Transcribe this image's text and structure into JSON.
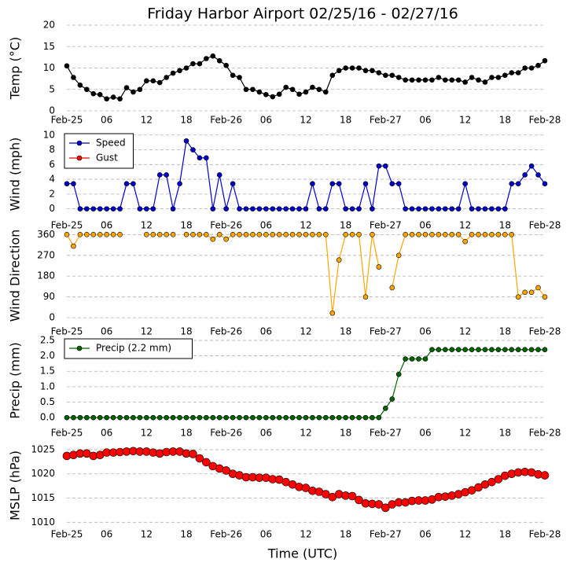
{
  "chart_data": [
    {
      "type": "line",
      "title": "Friday Harbor Airport 02/25/16 - 02/27/16",
      "ylabel": "Temp (°C)",
      "x": [
        0,
        1,
        2,
        3,
        4,
        5,
        6,
        7,
        8,
        9,
        10,
        11,
        12,
        13,
        14,
        15,
        16,
        17,
        18,
        19,
        20,
        21,
        22,
        23,
        24,
        25,
        26,
        27,
        28,
        29,
        30,
        31,
        32,
        33,
        34,
        35,
        36,
        37,
        38,
        39,
        40,
        41,
        42,
        43,
        44,
        45,
        46,
        47,
        48,
        49,
        50,
        51,
        52,
        53,
        54,
        55,
        56,
        57,
        58,
        59,
        60,
        61,
        62,
        63,
        64,
        65,
        66,
        67,
        68,
        69,
        70,
        71,
        72
      ],
      "xlim": [
        0,
        72
      ],
      "xticks": [
        {
          "value": 0,
          "label": "Feb-25"
        },
        {
          "value": 6,
          "label": "06"
        },
        12,
        18,
        {
          "value": 24,
          "label": "Feb-26"
        },
        {
          "value": 30,
          "label": "06"
        },
        {
          "value": 36,
          "label": "12"
        },
        {
          "value": 42,
          "label": "18"
        },
        {
          "value": 48,
          "label": "Feb-27"
        },
        {
          "value": 54,
          "label": "06"
        },
        {
          "value": 60,
          "label": "12"
        },
        {
          "value": 66,
          "label": "18"
        },
        {
          "value": 72,
          "label": "Feb-28"
        }
      ],
      "ylim": [
        0,
        20
      ],
      "yticks": [
        0,
        5,
        10,
        15,
        20
      ],
      "grid": true,
      "series": [
        {
          "name": null,
          "color": "#000000",
          "line": true,
          "marker_size": 3,
          "values": [
            10.5,
            7.8,
            6,
            5,
            4,
            3.8,
            2.8,
            3.2,
            2.8,
            5.4,
            4.4,
            5,
            7,
            7,
            6.6,
            7.8,
            8.8,
            9.4,
            10,
            11,
            11,
            12.2,
            12.8,
            11.7,
            10.6,
            8.3,
            7.8,
            5,
            5,
            4.4,
            3.8,
            3.3,
            3.9,
            5.5,
            5,
            3.9,
            4.4,
            5.5,
            5,
            4.4,
            8.3,
            9.4,
            10,
            10,
            10,
            9.4,
            9.4,
            8.9,
            8.3,
            8.3,
            7.8,
            7.2,
            7.2,
            7.2,
            7.2,
            7.2,
            7.8,
            7.2,
            7.2,
            7.2,
            6.7,
            7.8,
            7.2,
            6.7,
            7.8,
            7.8,
            8.3,
            8.9,
            8.9,
            10,
            10,
            10.6,
            11.7
          ]
        }
      ]
    },
    {
      "type": "line",
      "ylabel": "Wind (mph)",
      "legend": "upper left",
      "x": [
        0,
        1,
        2,
        3,
        4,
        5,
        6,
        7,
        8,
        9,
        10,
        11,
        12,
        13,
        14,
        15,
        16,
        17,
        18,
        19,
        20,
        21,
        22,
        23,
        24,
        25,
        26,
        27,
        28,
        29,
        30,
        31,
        32,
        33,
        34,
        35,
        36,
        37,
        38,
        39,
        40,
        41,
        42,
        43,
        44,
        45,
        46,
        47,
        48,
        49,
        50,
        51,
        52,
        53,
        54,
        55,
        56,
        57,
        58,
        59,
        60,
        61,
        62,
        63,
        64,
        65,
        66,
        67,
        68,
        69,
        70,
        71,
        72
      ],
      "xlim": [
        0,
        72
      ],
      "xticks": [
        {
          "value": 0,
          "label": "Feb-25"
        },
        {
          "value": 6,
          "label": "06"
        },
        12,
        18,
        {
          "value": 24,
          "label": "Feb-26"
        },
        {
          "value": 30,
          "label": "06"
        },
        {
          "value": 36,
          "label": "12"
        },
        {
          "value": 42,
          "label": "18"
        },
        {
          "value": 48,
          "label": "Feb-27"
        },
        {
          "value": 54,
          "label": "06"
        },
        {
          "value": 60,
          "label": "12"
        },
        {
          "value": 66,
          "label": "18"
        },
        {
          "value": 72,
          "label": "Feb-28"
        }
      ],
      "ylim": [
        -1,
        10.4
      ],
      "yticks": [
        0,
        2,
        4,
        6,
        8,
        10
      ],
      "grid": true,
      "series": [
        {
          "name": "Speed",
          "color": "#0000cc",
          "line": true,
          "marker_size": 3,
          "values": [
            3.4,
            3.4,
            0,
            0,
            0,
            0,
            0,
            0,
            0,
            3.4,
            3.4,
            0,
            0,
            0,
            4.6,
            4.6,
            0,
            3.4,
            9.2,
            8,
            6.9,
            6.9,
            0,
            4.6,
            0,
            3.4,
            0,
            0,
            0,
            0,
            0,
            0,
            0,
            0,
            0,
            0,
            0,
            3.4,
            0,
            0,
            3.4,
            3.4,
            0,
            0,
            0,
            3.4,
            0,
            5.8,
            5.8,
            3.4,
            3.4,
            0,
            0,
            0,
            0,
            0,
            0,
            0,
            0,
            0,
            3.4,
            0,
            0,
            0,
            0,
            0,
            0,
            3.4,
            3.4,
            4.6,
            5.8,
            4.6,
            3.4
          ]
        },
        {
          "name": "Gust",
          "color": "#ff0000",
          "line": true,
          "marker_size": 3,
          "values": [
            null,
            null,
            null,
            null,
            null,
            null,
            null,
            null,
            null,
            null,
            null,
            null,
            null,
            null,
            null,
            null,
            null,
            null,
            null,
            null,
            null,
            null,
            null,
            null,
            null,
            null,
            null,
            null,
            null,
            null,
            null,
            null,
            null,
            null,
            null,
            null,
            null,
            null,
            null,
            null,
            null,
            null,
            null,
            null,
            null,
            null,
            null,
            null,
            null,
            null,
            null,
            null,
            null,
            null,
            null,
            null,
            null,
            null,
            null,
            null,
            null,
            null,
            null,
            null,
            null,
            null,
            null,
            null,
            null,
            null,
            null,
            null,
            null
          ]
        }
      ]
    },
    {
      "type": "line",
      "ylabel": "Wind Direction",
      "x": [
        0,
        1,
        2,
        3,
        4,
        5,
        6,
        7,
        8,
        9,
        10,
        11,
        12,
        13,
        14,
        15,
        16,
        17,
        18,
        19,
        20,
        21,
        22,
        23,
        24,
        25,
        26,
        27,
        28,
        29,
        30,
        31,
        32,
        33,
        34,
        35,
        36,
        37,
        38,
        39,
        40,
        41,
        42,
        43,
        44,
        45,
        46,
        47,
        48,
        49,
        50,
        51,
        52,
        53,
        54,
        55,
        56,
        57,
        58,
        59,
        60,
        61,
        62,
        63,
        64,
        65,
        66,
        67,
        68,
        69,
        70,
        71,
        72
      ],
      "xlim": [
        0,
        72
      ],
      "xticks": [
        {
          "value": 0,
          "label": "Feb-25"
        },
        {
          "value": 6,
          "label": "06"
        },
        12,
        18,
        {
          "value": 24,
          "label": "Feb-26"
        },
        {
          "value": 30,
          "label": "06"
        },
        {
          "value": 36,
          "label": "12"
        },
        {
          "value": 42,
          "label": "18"
        },
        {
          "value": 48,
          "label": "Feb-27"
        },
        {
          "value": 54,
          "label": "06"
        },
        {
          "value": 60,
          "label": "12"
        },
        {
          "value": 66,
          "label": "18"
        },
        {
          "value": 72,
          "label": "Feb-28"
        }
      ],
      "ylim": [
        -20,
        385
      ],
      "yticks": [
        0,
        90,
        180,
        270,
        360
      ],
      "grid": true,
      "series": [
        {
          "name": null,
          "color": "#ffa500",
          "line": true,
          "marker_size": 3,
          "values": [
            360,
            310,
            360,
            360,
            360,
            360,
            360,
            360,
            360,
            null,
            null,
            null,
            360,
            360,
            360,
            360,
            360,
            null,
            360,
            360,
            360,
            360,
            340,
            360,
            340,
            360,
            360,
            360,
            360,
            360,
            360,
            360,
            360,
            360,
            360,
            360,
            360,
            360,
            360,
            360,
            20,
            250,
            360,
            360,
            360,
            90,
            360,
            220,
            null,
            130,
            270,
            360,
            360,
            360,
            360,
            360,
            360,
            360,
            360,
            360,
            330,
            360,
            360,
            360,
            360,
            360,
            360,
            360,
            90,
            110,
            110,
            130,
            90
          ]
        }
      ]
    },
    {
      "type": "line",
      "ylabel": "Precip (mm)",
      "legend": "upper left",
      "x": [
        0,
        1,
        2,
        3,
        4,
        5,
        6,
        7,
        8,
        9,
        10,
        11,
        12,
        13,
        14,
        15,
        16,
        17,
        18,
        19,
        20,
        21,
        22,
        23,
        24,
        25,
        26,
        27,
        28,
        29,
        30,
        31,
        32,
        33,
        34,
        35,
        36,
        37,
        38,
        39,
        40,
        41,
        42,
        43,
        44,
        45,
        46,
        47,
        48,
        49,
        50,
        51,
        52,
        53,
        54,
        55,
        56,
        57,
        58,
        59,
        60,
        61,
        62,
        63,
        64,
        65,
        66,
        67,
        68,
        69,
        70,
        71,
        72
      ],
      "xlim": [
        0,
        72
      ],
      "xticks": [
        {
          "value": 0,
          "label": "Feb-25"
        },
        {
          "value": 6,
          "label": "06"
        },
        12,
        18,
        {
          "value": 24,
          "label": "Feb-26"
        },
        {
          "value": 30,
          "label": "06"
        },
        {
          "value": 36,
          "label": "12"
        },
        {
          "value": 42,
          "label": "18"
        },
        {
          "value": 48,
          "label": "Feb-27"
        },
        {
          "value": 54,
          "label": "06"
        },
        {
          "value": 60,
          "label": "12"
        },
        {
          "value": 66,
          "label": "18"
        },
        {
          "value": 72,
          "label": "Feb-28"
        }
      ],
      "ylim": [
        -0.2,
        2.6
      ],
      "yticks": [
        {
          "value": 0,
          "label": "0.0"
        },
        0.5,
        {
          "value": 1,
          "label": "1.0"
        },
        1.5,
        {
          "value": 2,
          "label": "2.0"
        },
        2.5
      ],
      "grid": true,
      "series": [
        {
          "name": "Precip (2.2 mm)",
          "color": "#006400",
          "line": true,
          "marker_size": 3,
          "values": [
            0,
            0,
            0,
            0,
            0,
            0,
            0,
            0,
            0,
            0,
            0,
            0,
            0,
            0,
            0,
            0,
            0,
            0,
            0,
            0,
            0,
            0,
            0,
            0,
            0,
            0,
            0,
            0,
            0,
            0,
            0,
            0,
            0,
            0,
            0,
            0,
            0,
            0,
            0,
            0,
            0,
            0,
            0,
            0,
            0,
            0,
            0,
            0,
            0.3,
            0.6,
            1.4,
            1.9,
            1.9,
            1.9,
            1.9,
            2.2,
            2.2,
            2.2,
            2.2,
            2.2,
            2.2,
            2.2,
            2.2,
            2.2,
            2.2,
            2.2,
            2.2,
            2.2,
            2.2,
            2.2,
            2.2,
            2.2,
            2.2
          ]
        }
      ]
    },
    {
      "type": "line",
      "ylabel": "MSLP (hPa)",
      "xlabel": "Time (UTC)",
      "x": [
        0,
        1,
        2,
        3,
        4,
        5,
        6,
        7,
        8,
        9,
        10,
        11,
        12,
        13,
        14,
        15,
        16,
        17,
        18,
        19,
        20,
        21,
        22,
        23,
        24,
        25,
        26,
        27,
        28,
        29,
        30,
        31,
        32,
        33,
        34,
        35,
        36,
        37,
        38,
        39,
        40,
        41,
        42,
        43,
        44,
        45,
        46,
        47,
        48,
        49,
        50,
        51,
        52,
        53,
        54,
        55,
        56,
        57,
        58,
        59,
        60,
        61,
        62,
        63,
        64,
        65,
        66,
        67,
        68,
        69,
        70,
        71,
        72
      ],
      "xlim": [
        0,
        72
      ],
      "xticks": [
        {
          "value": 0,
          "label": "Feb-25"
        },
        {
          "value": 6,
          "label": "06"
        },
        12,
        18,
        {
          "value": 24,
          "label": "Feb-26"
        },
        {
          "value": 30,
          "label": "06"
        },
        {
          "value": 36,
          "label": "12"
        },
        {
          "value": 42,
          "label": "18"
        },
        {
          "value": 48,
          "label": "Feb-27"
        },
        {
          "value": 54,
          "label": "06"
        },
        {
          "value": 60,
          "label": "12"
        },
        {
          "value": 66,
          "label": "18"
        },
        {
          "value": 72,
          "label": "Feb-28"
        }
      ],
      "ylim": [
        1009.4,
        1025.8
      ],
      "yticks": [
        1010,
        1015,
        1020,
        1025
      ],
      "grid": true,
      "series": [
        {
          "name": null,
          "color": "#ff0000",
          "line": false,
          "marker_size": 5,
          "values": [
            1023.7,
            1023.9,
            1024.2,
            1024.2,
            1023.7,
            1023.9,
            1024.4,
            1024.4,
            1024.5,
            1024.6,
            1024.7,
            1024.6,
            1024.6,
            1024.4,
            1024.2,
            1024.5,
            1024.6,
            1024.6,
            1024.2,
            1024.1,
            1023.2,
            1022.4,
            1021.6,
            1021.1,
            1020.7,
            1020,
            1019.7,
            1019.3,
            1019.3,
            1019.2,
            1019.2,
            1018.9,
            1018.8,
            1018.3,
            1017.8,
            1017.3,
            1017.1,
            1016.5,
            1016.3,
            1015.8,
            1015.2,
            1015.8,
            1015.5,
            1015.4,
            1014.6,
            1013.9,
            1013.8,
            1013.7,
            1013,
            1013.7,
            1014.1,
            1014.1,
            1014.4,
            1014.5,
            1014.5,
            1014.7,
            1015.2,
            1015.3,
            1015.5,
            1015.8,
            1016.2,
            1016.6,
            1017.2,
            1017.8,
            1018.3,
            1018.9,
            1019.6,
            1020,
            1020.3,
            1020.4,
            1020.3,
            1019.9,
            1019.7
          ]
        }
      ]
    }
  ]
}
